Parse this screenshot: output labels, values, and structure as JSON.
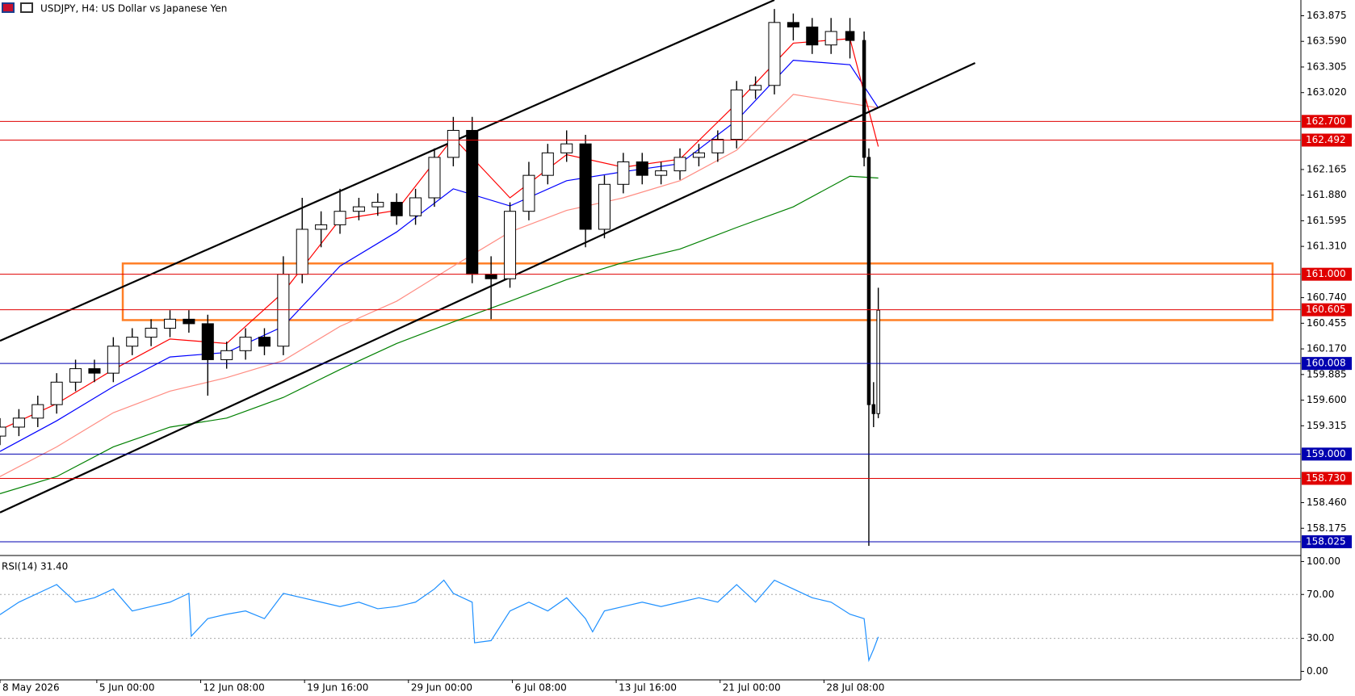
{
  "chart_data": [
    {
      "type": "candlestick",
      "title": "USDJPY, H4:  US Dollar vs Japanese Yen",
      "up_color": "#ffffff",
      "down_color": "#000000",
      "xlim": [
        0,
        551
      ],
      "ylim": [
        157.89,
        164.05
      ],
      "x": [
        0,
        8,
        16,
        24,
        32,
        40,
        48,
        56,
        64,
        72,
        80,
        88,
        96,
        104,
        112,
        120,
        128,
        136,
        144,
        152,
        160,
        168,
        176,
        184,
        192,
        200,
        208,
        216,
        224,
        232,
        240,
        248,
        256,
        264,
        272,
        280,
        288,
        296,
        304,
        312,
        320,
        328,
        336,
        344,
        352,
        360,
        366,
        368,
        370,
        372
      ],
      "open": [
        159.2,
        159.3,
        159.4,
        159.55,
        159.8,
        159.95,
        159.9,
        160.2,
        160.3,
        160.4,
        160.5,
        160.45,
        160.05,
        160.15,
        160.3,
        160.2,
        161.0,
        161.5,
        161.55,
        161.7,
        161.75,
        161.8,
        161.65,
        161.85,
        162.3,
        162.6,
        161.0,
        160.95,
        161.7,
        162.1,
        162.35,
        162.45,
        161.5,
        162.0,
        162.25,
        162.1,
        162.15,
        162.3,
        162.35,
        162.5,
        163.05,
        163.1,
        163.8,
        163.75,
        163.55,
        163.7,
        163.6,
        162.3,
        159.55,
        159.45
      ],
      "high": [
        159.4,
        159.5,
        159.65,
        159.9,
        160.05,
        160.05,
        160.3,
        160.4,
        160.5,
        160.6,
        160.6,
        160.55,
        160.25,
        160.4,
        160.4,
        161.2,
        161.85,
        161.7,
        161.95,
        161.85,
        161.9,
        161.9,
        161.95,
        162.4,
        162.75,
        162.75,
        161.2,
        161.8,
        162.25,
        162.45,
        162.6,
        162.55,
        162.1,
        162.35,
        162.35,
        162.25,
        162.4,
        162.45,
        162.6,
        163.15,
        163.2,
        163.95,
        163.9,
        163.85,
        163.85,
        163.85,
        163.7,
        162.4,
        159.8,
        160.85
      ],
      "low": [
        159.1,
        159.2,
        159.3,
        159.45,
        159.7,
        159.8,
        159.8,
        160.1,
        160.2,
        160.3,
        160.35,
        159.65,
        159.95,
        160.05,
        160.1,
        160.1,
        160.9,
        161.3,
        161.45,
        161.6,
        161.65,
        161.55,
        161.55,
        161.75,
        162.2,
        160.9,
        160.5,
        160.85,
        161.6,
        162.0,
        162.25,
        161.3,
        161.4,
        161.9,
        162.0,
        162.0,
        162.05,
        162.2,
        162.25,
        162.4,
        162.95,
        163.0,
        163.6,
        163.45,
        163.45,
        163.4,
        162.2,
        157.98,
        159.3,
        159.4
      ],
      "close": [
        159.3,
        159.4,
        159.55,
        159.8,
        159.95,
        159.9,
        160.2,
        160.3,
        160.4,
        160.5,
        160.45,
        160.05,
        160.15,
        160.3,
        160.2,
        161.0,
        161.5,
        161.55,
        161.7,
        161.75,
        161.8,
        161.65,
        161.85,
        162.3,
        162.6,
        161.0,
        160.95,
        161.7,
        162.1,
        162.35,
        162.45,
        161.5,
        162.0,
        162.25,
        162.1,
        162.15,
        162.3,
        162.35,
        162.5,
        163.05,
        163.1,
        163.8,
        163.75,
        163.55,
        163.7,
        163.6,
        162.3,
        159.55,
        159.45,
        160.6
      ],
      "moving_averages": [
        {
          "color": "#008000",
          "x": [
            0,
            24,
            48,
            72,
            96,
            120,
            144,
            168,
            192,
            216,
            240,
            264,
            288,
            312,
            336,
            360,
            372
          ],
          "values": [
            158.56,
            158.75,
            159.08,
            159.3,
            159.4,
            159.63,
            159.94,
            160.23,
            160.47,
            160.7,
            160.94,
            161.13,
            161.28,
            161.52,
            161.75,
            162.09,
            162.07
          ]
        },
        {
          "color": "#ff8c82",
          "x": [
            0,
            24,
            48,
            72,
            96,
            120,
            144,
            168,
            192,
            216,
            240,
            264,
            288,
            312,
            336,
            360,
            372
          ],
          "values": [
            158.75,
            159.08,
            159.46,
            159.7,
            159.85,
            160.04,
            160.42,
            160.7,
            161.09,
            161.47,
            161.71,
            161.85,
            162.04,
            162.38,
            163.0,
            162.9,
            162.85
          ]
        },
        {
          "color": "#0000ff",
          "x": [
            0,
            24,
            48,
            72,
            96,
            120,
            144,
            168,
            192,
            216,
            240,
            264,
            288,
            312,
            336,
            360,
            372
          ],
          "values": [
            159.03,
            159.37,
            159.75,
            160.08,
            160.13,
            160.42,
            161.09,
            161.47,
            161.95,
            161.76,
            162.04,
            162.14,
            162.23,
            162.71,
            163.38,
            163.33,
            162.85
          ]
        },
        {
          "color": "#ff0000",
          "x": [
            0,
            24,
            48,
            72,
            96,
            120,
            144,
            168,
            192,
            216,
            240,
            264,
            288,
            312,
            336,
            360,
            372
          ],
          "values": [
            159.27,
            159.56,
            159.94,
            160.28,
            160.23,
            160.8,
            161.61,
            161.71,
            162.52,
            161.85,
            162.33,
            162.19,
            162.28,
            162.9,
            163.57,
            163.62,
            162.42
          ]
        }
      ],
      "trendlines": [
        {
          "color": "#000000",
          "x": [
            0,
            328
          ],
          "values": [
            160.26,
            164.05
          ]
        },
        {
          "color": "#000000",
          "x": [
            0,
            413
          ],
          "values": [
            158.35,
            163.35
          ]
        }
      ],
      "zone": {
        "color": "#ff7f27",
        "x": [
          52,
          539
        ],
        "values": [
          161.12,
          160.49
        ]
      },
      "levels": [
        {
          "value": 162.7,
          "label": "162.700",
          "color": "#e00000"
        },
        {
          "value": 162.492,
          "label": "162.492",
          "color": "#e00000"
        },
        {
          "value": 161.0,
          "label": "161.000",
          "color": "#e00000"
        },
        {
          "value": 160.605,
          "label": "160.605",
          "color": "#e00000"
        },
        {
          "value": 160.008,
          "label": "160.008",
          "color": "#0000b0"
        },
        {
          "value": 159.0,
          "label": "159.000",
          "color": "#0000b0"
        },
        {
          "value": 158.73,
          "label": "158.730",
          "color": "#e00000"
        },
        {
          "value": 158.025,
          "label": "158.025",
          "color": "#0000b0"
        }
      ],
      "yticks": [
        163.875,
        {
          "value": 163.59,
          "label": "163.590"
        },
        163.305,
        {
          "value": 163.02,
          "label": "163.020"
        },
        162.165,
        {
          "value": 161.88,
          "label": "161.880"
        },
        161.595,
        {
          "value": 161.31,
          "label": "161.310"
        },
        {
          "value": 160.74,
          "label": "160.740"
        },
        160.455,
        {
          "value": 160.17,
          "label": "160.170"
        },
        159.885,
        {
          "value": 159.6,
          "label": "159.600"
        },
        159.315,
        {
          "value": 158.46,
          "label": "158.460"
        },
        158.175
      ]
    },
    {
      "type": "line",
      "title": "RSI(14) 31.40",
      "color": "#1e90ff",
      "xlim": [
        0,
        551
      ],
      "ylim": [
        -7,
        104
      ],
      "x": [
        0,
        8,
        16,
        24,
        32,
        40,
        48,
        56,
        64,
        72,
        80,
        81,
        88,
        96,
        104,
        112,
        120,
        128,
        136,
        144,
        152,
        160,
        168,
        176,
        184,
        188,
        192,
        200,
        201,
        208,
        216,
        224,
        232,
        240,
        248,
        251,
        256,
        264,
        272,
        280,
        288,
        296,
        304,
        312,
        320,
        328,
        336,
        344,
        352,
        360,
        366,
        368,
        370,
        372
      ],
      "values": [
        51.6,
        63,
        71,
        79,
        63,
        67,
        75,
        55,
        59,
        63,
        71,
        32,
        48,
        52,
        55,
        48,
        71,
        67,
        63,
        59,
        63,
        57,
        59,
        63,
        75,
        83,
        71,
        63,
        26,
        28,
        55,
        63,
        55,
        67,
        48,
        36,
        55,
        59,
        63,
        59,
        63,
        67,
        63,
        79,
        63,
        83,
        75,
        67,
        63,
        52,
        48,
        10,
        20,
        31.4
      ],
      "yticks": [
        {
          "value": 100,
          "label": "100.00"
        },
        {
          "value": 70,
          "label": "70.00"
        },
        {
          "value": 30,
          "label": "30.00"
        },
        {
          "value": 0,
          "label": "0.00"
        }
      ],
      "xticks": [
        {
          "value": 0,
          "label": "8 May 2026"
        },
        {
          "value": 41,
          "label": "5 Jun 00:00"
        },
        {
          "value": 85,
          "label": "12 Jun 08:00"
        },
        {
          "value": 129,
          "label": "19 Jun 16:00"
        },
        {
          "value": 173,
          "label": "29 Jun 00:00"
        },
        {
          "value": 217,
          "label": "6 Jul 08:00"
        },
        {
          "value": 261,
          "label": "13 Jul 16:00"
        },
        {
          "value": 305,
          "label": "21 Jul 00:00"
        },
        {
          "value": 349,
          "label": "28 Jul 08:00"
        }
      ]
    }
  ]
}
